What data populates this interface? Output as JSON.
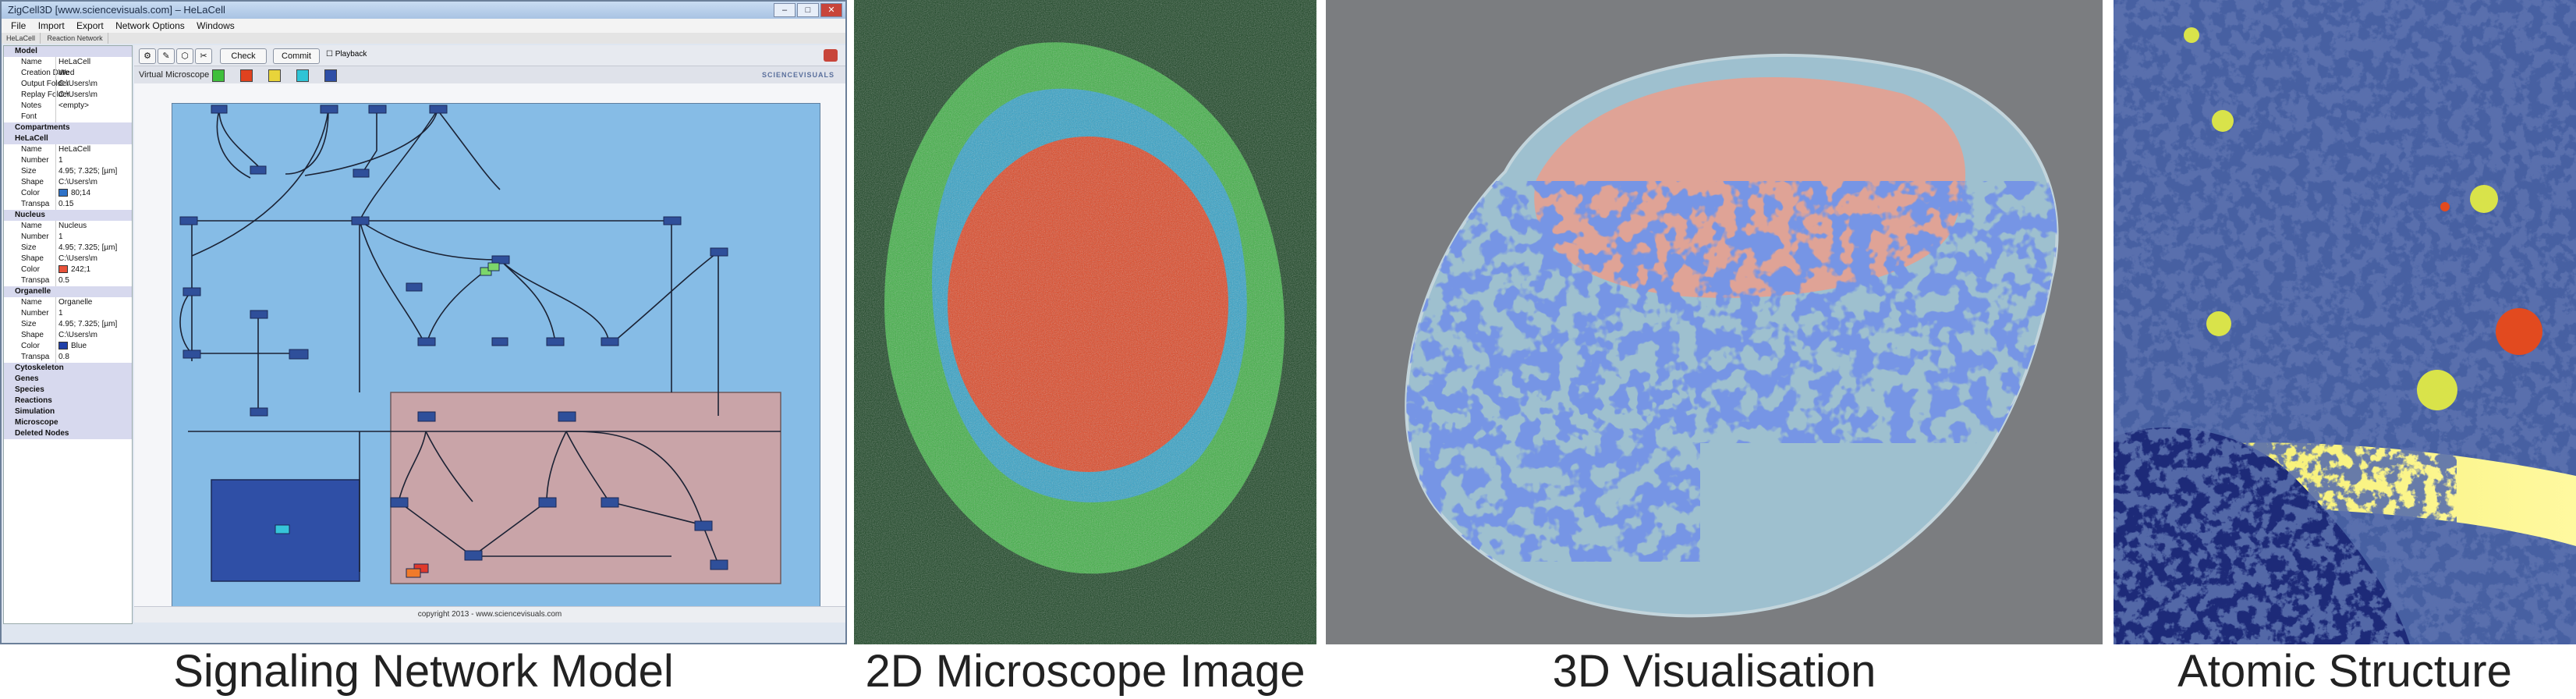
{
  "captions": {
    "panel1": "Signaling Network Model",
    "panel2": "2D Microscope Image",
    "panel3": "3D Visualisation",
    "panel4": "Atomic Structure"
  },
  "app": {
    "title": "ZigCell3D [www.sciencevisuals.com] – HeLaCell",
    "window_buttons": [
      "–",
      "□",
      "✕"
    ],
    "menu": [
      "File",
      "Import",
      "Export",
      "Network Options",
      "Windows"
    ],
    "doc_tabs": [
      "HeLaCell",
      "Reaction Network"
    ],
    "toolbar": {
      "check_label": "Check",
      "commit_label": "Commit",
      "playback_label": "Playback"
    },
    "vm_label": "Virtual Microscope",
    "brand": "SCIENCEVISUALS",
    "status": "copyright 2013 - www.sciencevisuals.com",
    "tree": [
      {
        "type": "sec",
        "label": "Model"
      },
      {
        "type": "prop",
        "k": "Name",
        "v": "HeLaCell"
      },
      {
        "type": "prop",
        "k": "Creation Date",
        "v": "Wed"
      },
      {
        "type": "prop",
        "k": "Output Folder",
        "v": "C:\\Users\\m"
      },
      {
        "type": "prop",
        "k": "Replay Folder",
        "v": "C:\\Users\\m"
      },
      {
        "type": "prop",
        "k": "Notes",
        "v": "<empty>"
      },
      {
        "type": "prop",
        "k": "Font",
        "v": ""
      },
      {
        "type": "sec",
        "label": "Compartments"
      },
      {
        "type": "sec",
        "label": "HeLaCell"
      },
      {
        "type": "prop",
        "k": "Name",
        "v": "HeLaCell"
      },
      {
        "type": "prop",
        "k": "Number",
        "v": "1"
      },
      {
        "type": "prop",
        "k": "Size",
        "v": "4.95; 7.325; [µm]"
      },
      {
        "type": "prop",
        "k": "Shape",
        "v": "C:\\Users\\m"
      },
      {
        "type": "prop",
        "k": "Color",
        "v": "80;14",
        "swatch": "#2f73c9"
      },
      {
        "type": "prop",
        "k": "Transpa",
        "v": "0.15"
      },
      {
        "type": "sec",
        "label": "Nucleus"
      },
      {
        "type": "prop",
        "k": "Name",
        "v": "Nucleus"
      },
      {
        "type": "prop",
        "k": "Number",
        "v": "1"
      },
      {
        "type": "prop",
        "k": "Size",
        "v": "4.95; 7.325; [µm]"
      },
      {
        "type": "prop",
        "k": "Shape",
        "v": "C:\\Users\\m"
      },
      {
        "type": "prop",
        "k": "Color",
        "v": "242;1",
        "swatch": "#e8523a"
      },
      {
        "type": "prop",
        "k": "Transpa",
        "v": "0.5"
      },
      {
        "type": "sec",
        "label": "Organelle"
      },
      {
        "type": "prop",
        "k": "Name",
        "v": "Organelle"
      },
      {
        "type": "prop",
        "k": "Number",
        "v": "1"
      },
      {
        "type": "prop",
        "k": "Size",
        "v": "4.95; 7.325; [µm]"
      },
      {
        "type": "prop",
        "k": "Shape",
        "v": "C:\\Users\\m"
      },
      {
        "type": "prop",
        "k": "Color",
        "v": "Blue",
        "swatch": "#1f3fa8"
      },
      {
        "type": "prop",
        "k": "Transpa",
        "v": "0.8"
      },
      {
        "type": "sec",
        "label": "Cytoskeleton"
      },
      {
        "type": "sec",
        "label": "Genes"
      },
      {
        "type": "sec",
        "label": "Species"
      },
      {
        "type": "sec",
        "label": "Reactions"
      },
      {
        "type": "sec",
        "label": "Simulation"
      },
      {
        "type": "sec",
        "label": "Microscope"
      },
      {
        "type": "sec",
        "label": "Deleted Nodes"
      }
    ]
  },
  "colors": {
    "canvas_blue": "#86bce6",
    "nucleus_pink": "#c9a4a8",
    "organelle_blue": "#2f4fa6",
    "microscope_red": "#e0421f",
    "microscope_green": "#3fbf3c",
    "microscope_cyan": "#2fa3d6"
  },
  "icons": [
    "window-close-icon",
    "check-button",
    "commit-button",
    "playback-checkbox",
    "color-square-icon",
    "sciencevisuals-logo-icon"
  ]
}
